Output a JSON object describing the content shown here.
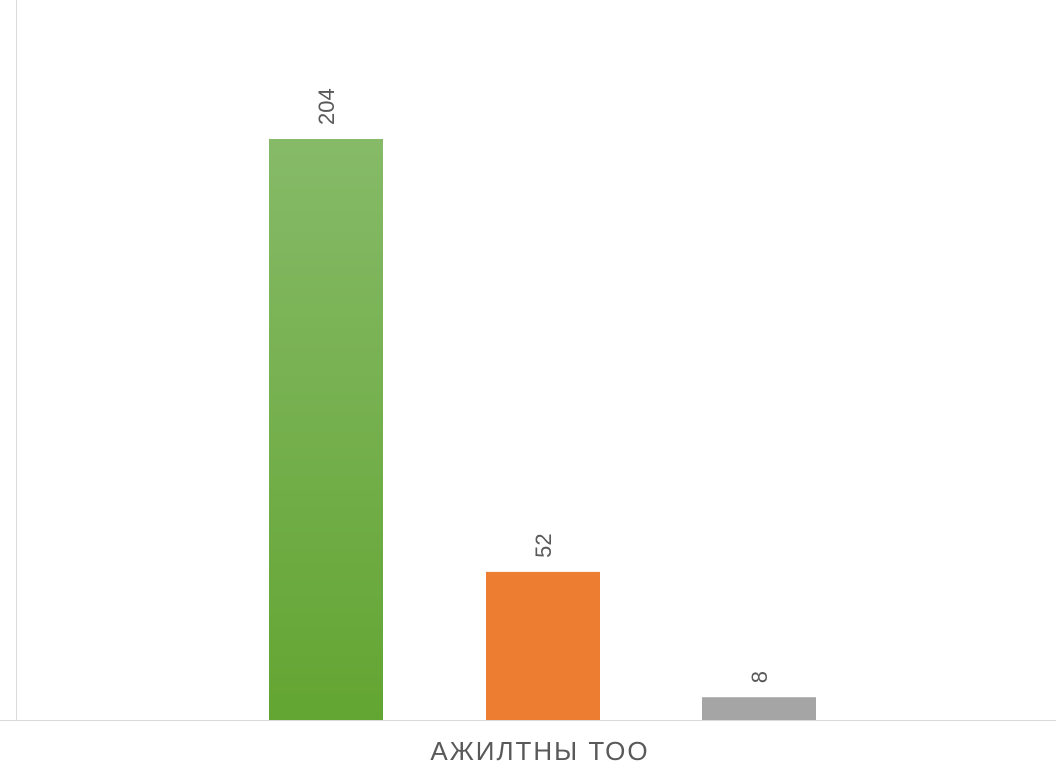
{
  "chart_data": {
    "type": "bar",
    "categories": [
      "АЖИЛТНЫ ТОО"
    ],
    "series": [
      {
        "values": [
          204
        ],
        "color_top": "#86ba68",
        "color_bottom": "#63a532"
      },
      {
        "values": [
          52
        ],
        "color_top": "#ed7d31",
        "color_bottom": "#ed7d31"
      },
      {
        "values": [
          8
        ],
        "color_top": "#a5a5a5",
        "color_bottom": "#a5a5a5"
      }
    ],
    "data_labels": [
      "204",
      "52",
      "8"
    ],
    "data_label_orientation": "vertical",
    "ylim": [
      0,
      204
    ],
    "axis_color": "#d9d9d9",
    "label_color": "#595959",
    "grid": false,
    "legend": "none",
    "title": "",
    "xlabel": "",
    "ylabel": ""
  }
}
